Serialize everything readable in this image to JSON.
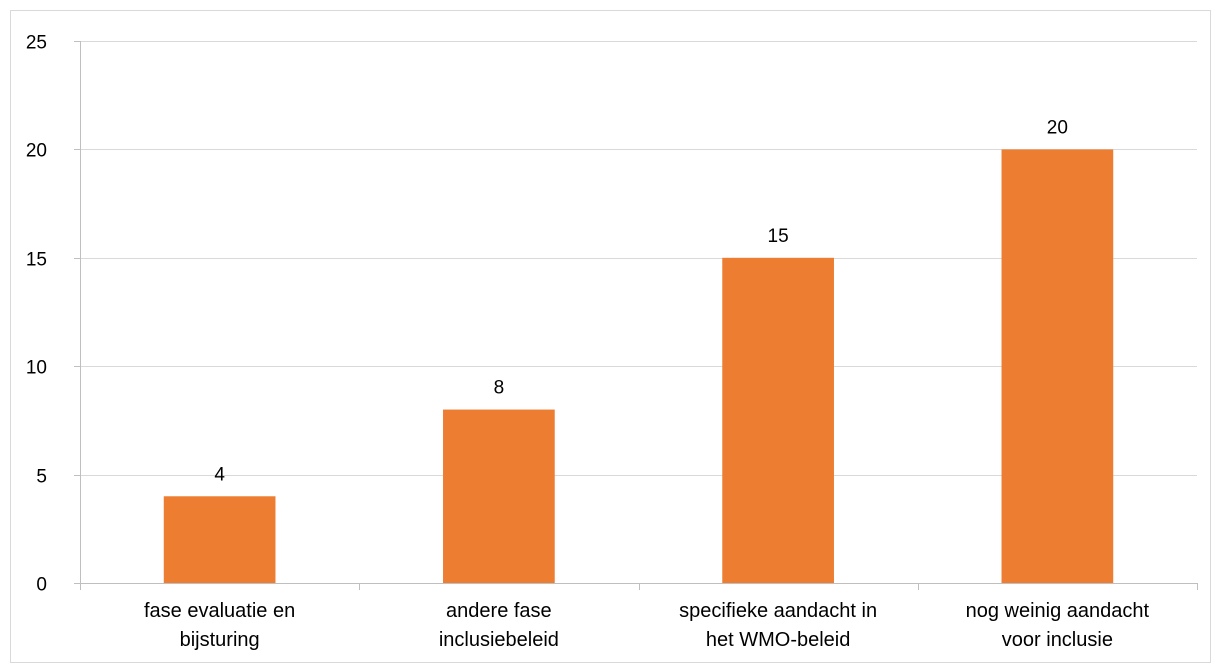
{
  "chart_data": {
    "type": "bar",
    "categories": [
      "fase evaluatie en bijsturing",
      "andere fase inclusiebeleid",
      "specifieke aandacht in het WMO-beleid",
      "nog weinig aandacht voor inclusie"
    ],
    "category_lines": [
      [
        "fase evaluatie en",
        "bijsturing"
      ],
      [
        "andere fase",
        "inclusiebeleid"
      ],
      [
        "specifieke aandacht in",
        "het WMO-beleid"
      ],
      [
        "nog weinig aandacht",
        "voor inclusie"
      ]
    ],
    "values": [
      4,
      8,
      15,
      20
    ],
    "yticks": [
      "0",
      "5",
      "10",
      "15",
      "20",
      "25"
    ],
    "ylim": [
      0,
      25
    ],
    "title": "",
    "xlabel": "",
    "ylabel": "",
    "grid": true,
    "legend": "none",
    "bar_color": "#ED7D31",
    "data_labels": true
  }
}
